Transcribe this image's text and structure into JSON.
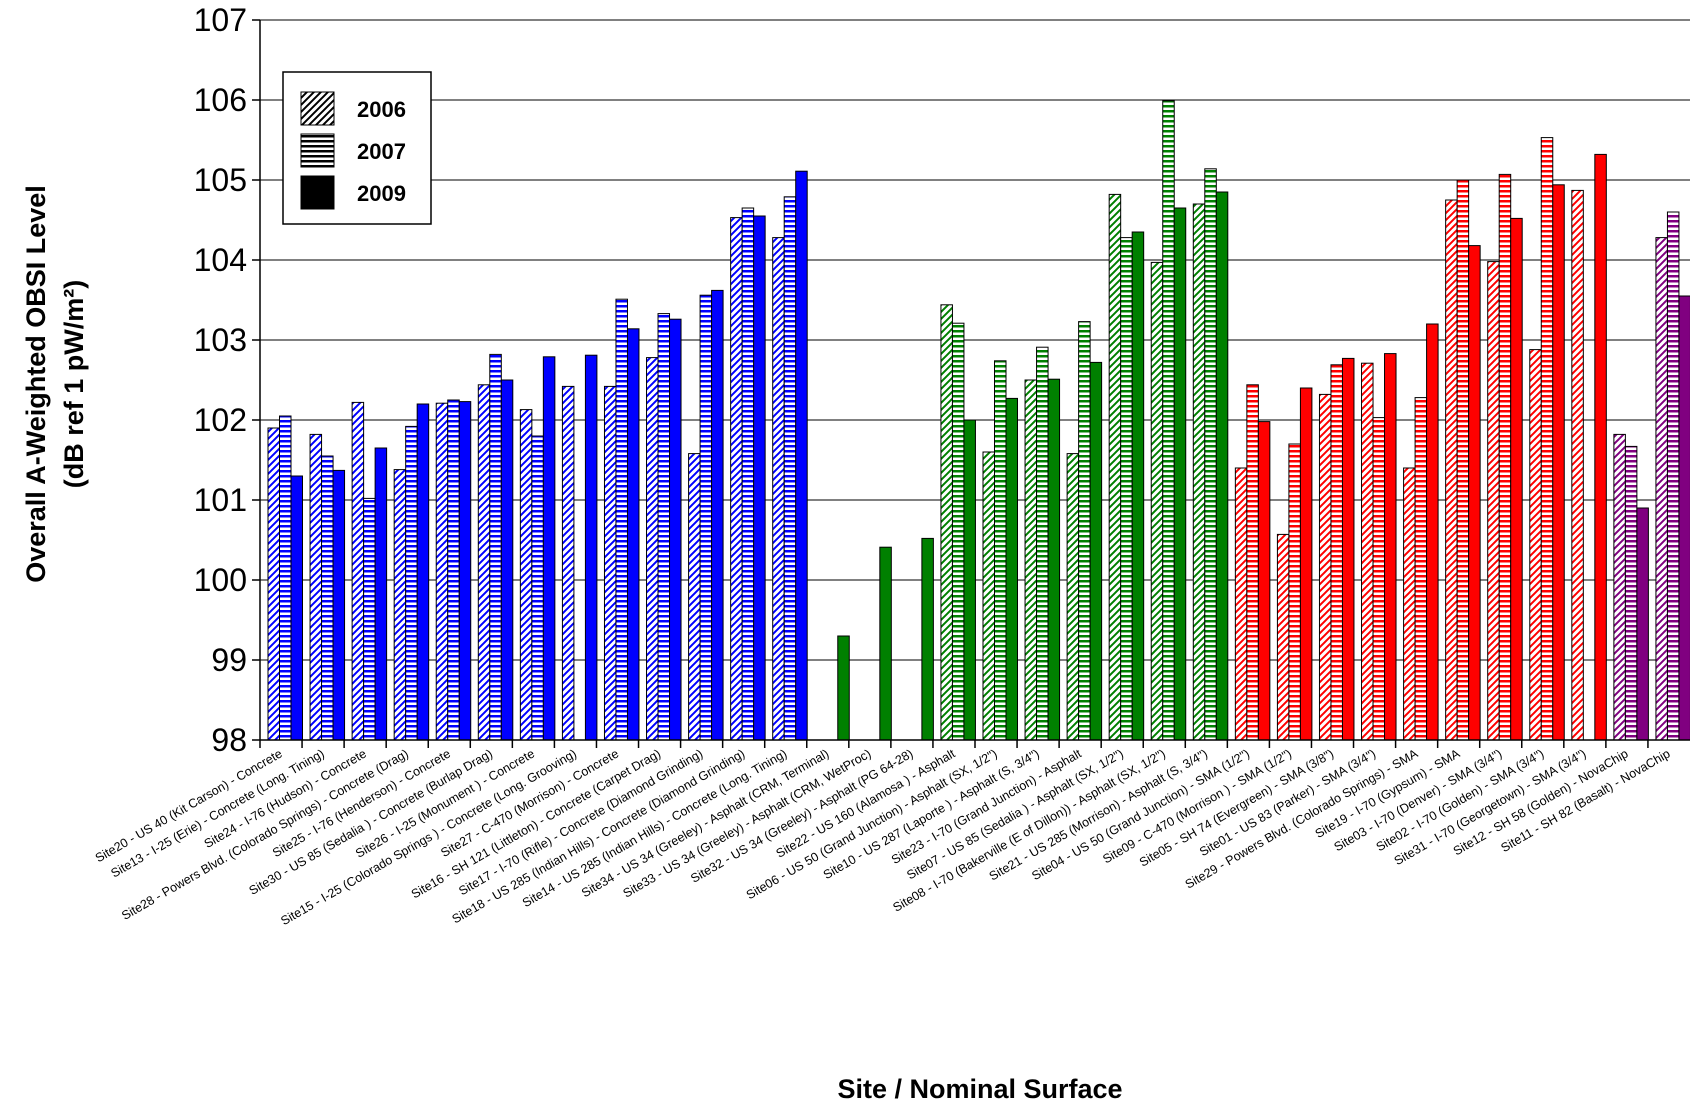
{
  "chart_data": {
    "type": "bar",
    "ylabel_line1": "Overall A-Weighted OBSI Level",
    "ylabel_line2": "(dB ref 1 pW/m²)",
    "xlabel": "Site / Nominal Surface",
    "ylim": [
      98,
      107
    ],
    "yticks": [
      98,
      99,
      100,
      101,
      102,
      103,
      104,
      105,
      106,
      107
    ],
    "grid": true,
    "legend_position": "top-left",
    "series": [
      {
        "name": "2006",
        "pattern": "diagonal"
      },
      {
        "name": "2007",
        "pattern": "horizontal"
      },
      {
        "name": "2009",
        "pattern": "solid"
      }
    ],
    "surface_colors": {
      "concrete": "#0000ff",
      "asphalt": "#008000",
      "sma": "#ff0000",
      "novachip": "#800080"
    },
    "categories": [
      {
        "label": "Site20 - US 40  (Kit Carson) - Concrete",
        "surface": "concrete",
        "values": [
          101.9,
          102.05,
          101.3
        ]
      },
      {
        "label": "Site13 - I-25 (Erie) - Concrete (Long. Tining)",
        "surface": "concrete",
        "values": [
          101.82,
          101.55,
          101.37
        ]
      },
      {
        "label": "Site24 - I-76 (Hudson) - Concrete",
        "surface": "concrete",
        "values": [
          102.22,
          101.02,
          101.65
        ]
      },
      {
        "label": "Site28 - Powers Blvd. (Colorado Springs) - Concrete (Drag)",
        "surface": "concrete",
        "values": [
          101.38,
          101.92,
          102.2
        ]
      },
      {
        "label": "Site25 - I-76 (Henderson) - Concrete",
        "surface": "concrete",
        "values": [
          102.21,
          102.25,
          102.23
        ]
      },
      {
        "label": "Site30 - US 85 (Sedalia ) - Concrete (Burlap Drag)",
        "surface": "concrete",
        "values": [
          102.44,
          102.82,
          102.5
        ]
      },
      {
        "label": "Site26 - I-25 (Monument ) - Concrete",
        "surface": "concrete",
        "values": [
          102.13,
          101.8,
          102.79
        ]
      },
      {
        "label": "Site15 - I-25 (Colorado Springs ) - Concrete (Long. Grooving)",
        "surface": "concrete",
        "values": [
          102.42,
          null,
          102.81
        ]
      },
      {
        "label": "Site27 - C-470 (Morrison) - Concrete",
        "surface": "concrete",
        "values": [
          102.42,
          103.51,
          103.14
        ]
      },
      {
        "label": "Site16 - SH 121 (Littleton) - Concrete (Carpet Drag)",
        "surface": "concrete",
        "values": [
          102.78,
          103.33,
          103.26
        ]
      },
      {
        "label": "Site17 - I-70 (Rifle) - Concrete (Diamond Grinding)",
        "surface": "concrete",
        "values": [
          101.58,
          103.56,
          103.62
        ]
      },
      {
        "label": "Site18 - US 285 (Indian Hills) - Concrete (Diamond Grinding)",
        "surface": "concrete",
        "values": [
          104.53,
          104.65,
          104.55
        ]
      },
      {
        "label": "Site14 - US 285 (Indian Hills) - Concrete (Long. Tining)",
        "surface": "concrete",
        "values": [
          104.28,
          104.79,
          105.11
        ]
      },
      {
        "label": "Site34 - US 34 (Greeley) - Asphalt (CRM, Terminal)",
        "surface": "asphalt",
        "values": [
          null,
          null,
          99.3
        ]
      },
      {
        "label": "Site33 - US 34 (Greeley) - Asphalt (CRM, WetProc)",
        "surface": "asphalt",
        "values": [
          null,
          null,
          100.41
        ]
      },
      {
        "label": "Site32 - US 34 (Greeley) - Asphalt (PG 64-28)",
        "surface": "asphalt",
        "values": [
          null,
          null,
          100.52
        ]
      },
      {
        "label": "Site22 - US 160 (Alamosa ) - Asphalt",
        "surface": "asphalt",
        "values": [
          103.44,
          103.21,
          102.0
        ]
      },
      {
        "label": "Site06 - US 50 (Grand Junction) - Asphalt (SX, 1/2\")",
        "surface": "asphalt",
        "values": [
          101.6,
          102.74,
          102.27
        ]
      },
      {
        "label": "Site10 - US 287 (Laporte ) - Asphalt (S, 3/4\")",
        "surface": "asphalt",
        "values": [
          102.5,
          102.91,
          102.51
        ]
      },
      {
        "label": "Site23 - I-70 (Grand Junction) - Asphalt",
        "surface": "asphalt",
        "values": [
          101.58,
          103.23,
          102.72
        ]
      },
      {
        "label": "Site07 - US 85 (Sedalia ) - Asphalt (SX, 1/2\")",
        "surface": "asphalt",
        "values": [
          104.82,
          104.28,
          104.35
        ]
      },
      {
        "label": "Site08 - I-70 (Bakerville (E of Dillon)) - Asphalt (SX, 1/2\")",
        "surface": "asphalt",
        "values": [
          103.97,
          105.99,
          104.65
        ]
      },
      {
        "label": "Site21 - US 285 (Morrison) - Asphalt (S, 3/4\")",
        "surface": "asphalt",
        "values": [
          104.7,
          105.14,
          104.85
        ]
      },
      {
        "label": "Site04 - US 50 (Grand Junction) - SMA (1/2\")",
        "surface": "sma",
        "values": [
          101.4,
          102.44,
          101.98
        ]
      },
      {
        "label": "Site09 - C-470 (Morrison ) - SMA (1/2\")",
        "surface": "sma",
        "values": [
          100.57,
          101.7,
          102.4
        ]
      },
      {
        "label": "Site05 - SH 74 (Evergreen) - SMA (3/8\")",
        "surface": "sma",
        "values": [
          102.32,
          102.69,
          102.77
        ]
      },
      {
        "label": "Site01 - US 83 (Parker) - SMA (3/4\")",
        "surface": "sma",
        "values": [
          102.71,
          102.03,
          102.83
        ]
      },
      {
        "label": "Site29 - Powers Blvd. (Colorado Springs) - SMA",
        "surface": "sma",
        "values": [
          101.4,
          102.28,
          103.2
        ]
      },
      {
        "label": "Site19 - I-70 (Gypsum) - SMA",
        "surface": "sma",
        "values": [
          104.75,
          105.0,
          104.18
        ]
      },
      {
        "label": "Site03 - I-70 (Denver) - SMA (3/4\")",
        "surface": "sma",
        "values": [
          103.98,
          105.07,
          104.52
        ]
      },
      {
        "label": "Site02 - I-70 (Golden) - SMA (3/4\")",
        "surface": "sma",
        "values": [
          102.88,
          105.53,
          104.94
        ]
      },
      {
        "label": "Site31 - I-70 (Georgetown) - SMA (3/4\")",
        "surface": "sma",
        "values": [
          104.87,
          null,
          105.32
        ]
      },
      {
        "label": "Site12 - SH 58 (Golden) - NovaChip",
        "surface": "novachip",
        "values": [
          101.82,
          101.67,
          100.9
        ]
      },
      {
        "label": "Site11 - SH 82 (Basalt) - NovaChip",
        "surface": "novachip",
        "values": [
          104.28,
          104.6,
          103.55
        ]
      }
    ]
  }
}
